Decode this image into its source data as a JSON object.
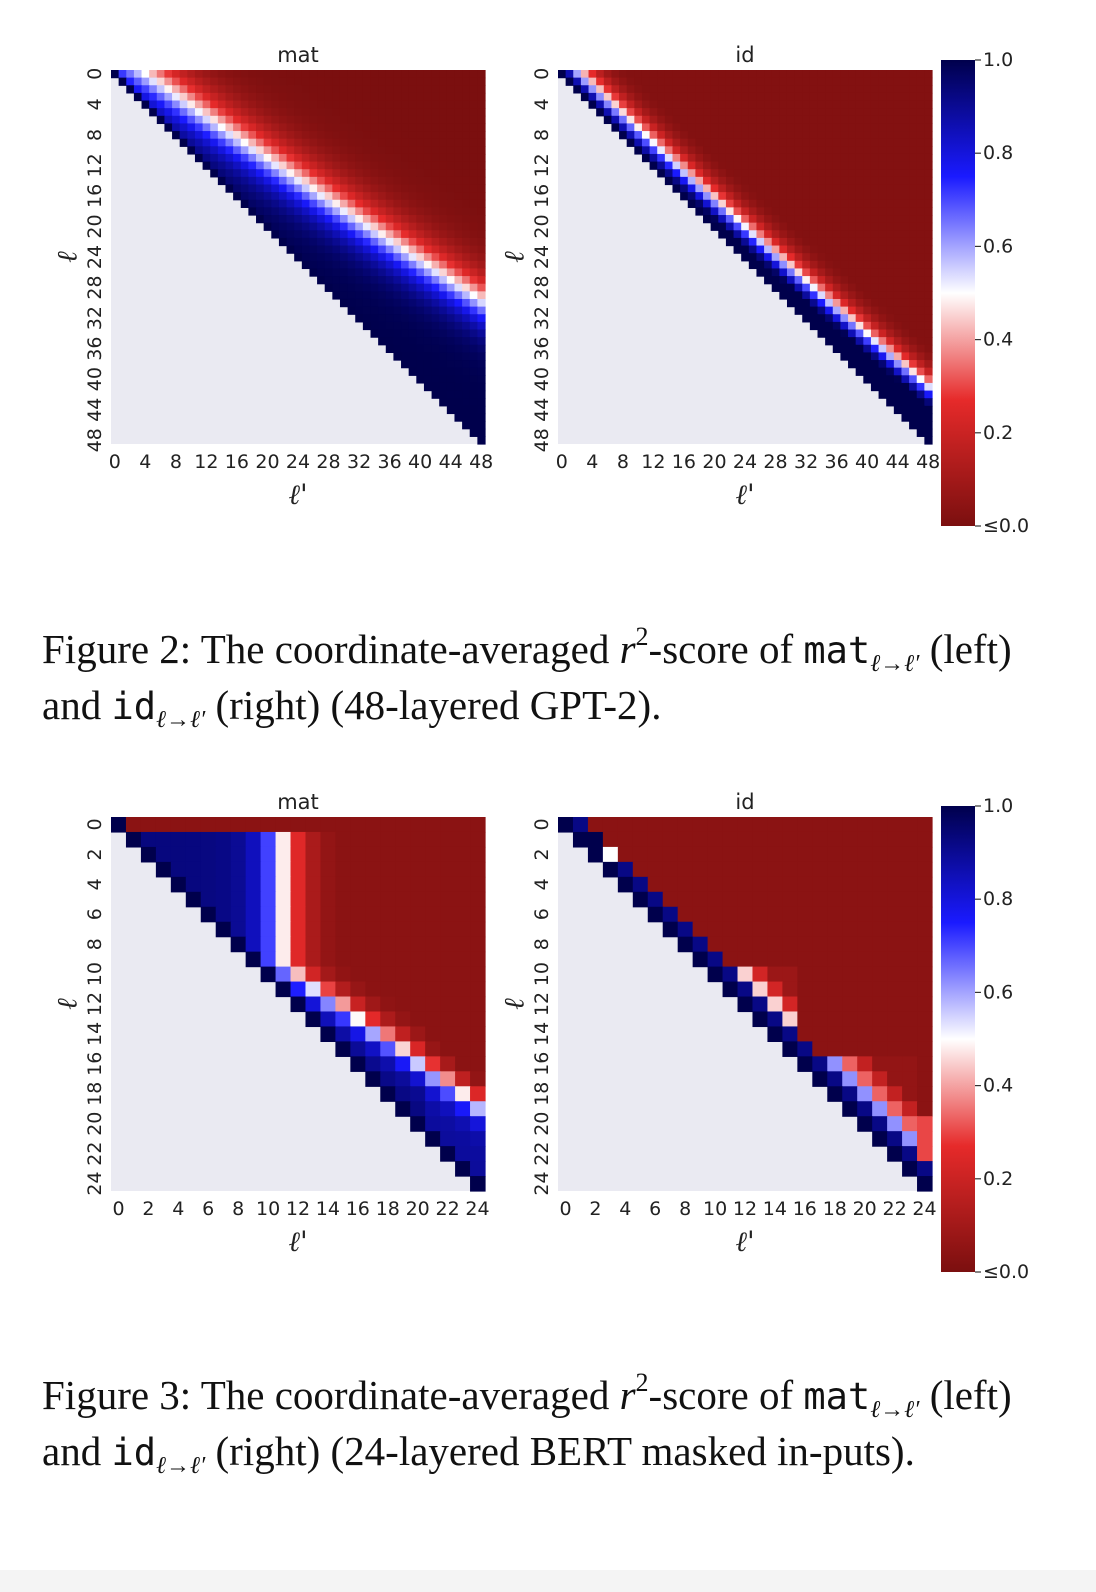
{
  "figures": [
    {
      "number_label": "Figure 2:",
      "caption": {
        "p1": " The coordinate-averaged ",
        "r": "r",
        "sq": "2",
        "p2": "-score of ",
        "mat": "mat",
        "sub1": "ℓ→ℓ′",
        "p3": " (left) and ",
        "id": "id",
        "sub2": "ℓ→ℓ′",
        "p4": " (right) (48-layered GPT-2)."
      }
    },
    {
      "number_label": "Figure 3:",
      "caption": {
        "p1": " The coordinate-averaged ",
        "r": "r",
        "sq": "2",
        "p2": "-score of ",
        "mat": "mat",
        "sub1": "ℓ→ℓ′",
        "p3": " (left) and ",
        "id": "id",
        "sub2": "ℓ→ℓ′",
        "p4": " (right) (24-layered BERT masked in-puts)."
      }
    }
  ],
  "colors": {
    "cmap_low": "#7b0f0f",
    "cmap_red": "#e62a2a",
    "cmap_mid": "#ffffff",
    "cmap_blue": "#1a1aff",
    "cmap_high": "#00004c",
    "masked": "#eaeaf2"
  },
  "chart_data": [
    {
      "type": "heatmap",
      "title": "mat",
      "xlabel": "ℓ'",
      "ylabel": "ℓ",
      "n_layers": 48,
      "tick_step": 4,
      "xticks": [
        "0",
        "4",
        "8",
        "12",
        "16",
        "20",
        "24",
        "28",
        "32",
        "36",
        "40",
        "44",
        "48"
      ],
      "yticks": [
        "0",
        "4",
        "8",
        "12",
        "16",
        "20",
        "24",
        "28",
        "32",
        "36",
        "40",
        "44",
        "48"
      ],
      "mask": "lower-triangle (ℓ' < ℓ)",
      "model": "gpt2-mat"
    },
    {
      "type": "heatmap",
      "title": "id",
      "xlabel": "ℓ'",
      "ylabel": "ℓ",
      "n_layers": 48,
      "tick_step": 4,
      "xticks": [
        "0",
        "4",
        "8",
        "12",
        "16",
        "20",
        "24",
        "28",
        "32",
        "36",
        "40",
        "44",
        "48"
      ],
      "yticks": [
        "0",
        "4",
        "8",
        "12",
        "16",
        "20",
        "24",
        "28",
        "32",
        "36",
        "40",
        "44",
        "48"
      ],
      "mask": "lower-triangle (ℓ' < ℓ)",
      "model": "gpt2-id"
    },
    {
      "type": "heatmap",
      "title": "mat",
      "xlabel": "ℓ'",
      "ylabel": "ℓ",
      "n_layers": 24,
      "tick_step": 2,
      "xticks": [
        "0",
        "2",
        "4",
        "6",
        "8",
        "10",
        "12",
        "14",
        "16",
        "18",
        "20",
        "22",
        "24"
      ],
      "yticks": [
        "0",
        "2",
        "4",
        "6",
        "8",
        "10",
        "12",
        "14",
        "16",
        "18",
        "20",
        "22",
        "24"
      ],
      "mask": "lower-triangle (ℓ' < ℓ)",
      "model": "bert-mat"
    },
    {
      "type": "heatmap",
      "title": "id",
      "xlabel": "ℓ'",
      "ylabel": "ℓ",
      "n_layers": 24,
      "tick_step": 2,
      "xticks": [
        "0",
        "2",
        "4",
        "6",
        "8",
        "10",
        "12",
        "14",
        "16",
        "18",
        "20",
        "22",
        "24"
      ],
      "yticks": [
        "0",
        "2",
        "4",
        "6",
        "8",
        "10",
        "12",
        "14",
        "16",
        "18",
        "20",
        "22",
        "24"
      ],
      "mask": "lower-triangle (ℓ' < ℓ)",
      "model": "bert-id"
    }
  ],
  "colorbars": [
    {
      "ticks": [
        "1.0",
        "0.8",
        "0.6",
        "0.4",
        "0.2",
        "≤0.0"
      ],
      "range": [
        0,
        1
      ]
    },
    {
      "ticks": [
        "1.0",
        "0.8",
        "0.6",
        "0.4",
        "0.2",
        "≤0.0"
      ],
      "range": [
        0,
        1
      ]
    }
  ]
}
